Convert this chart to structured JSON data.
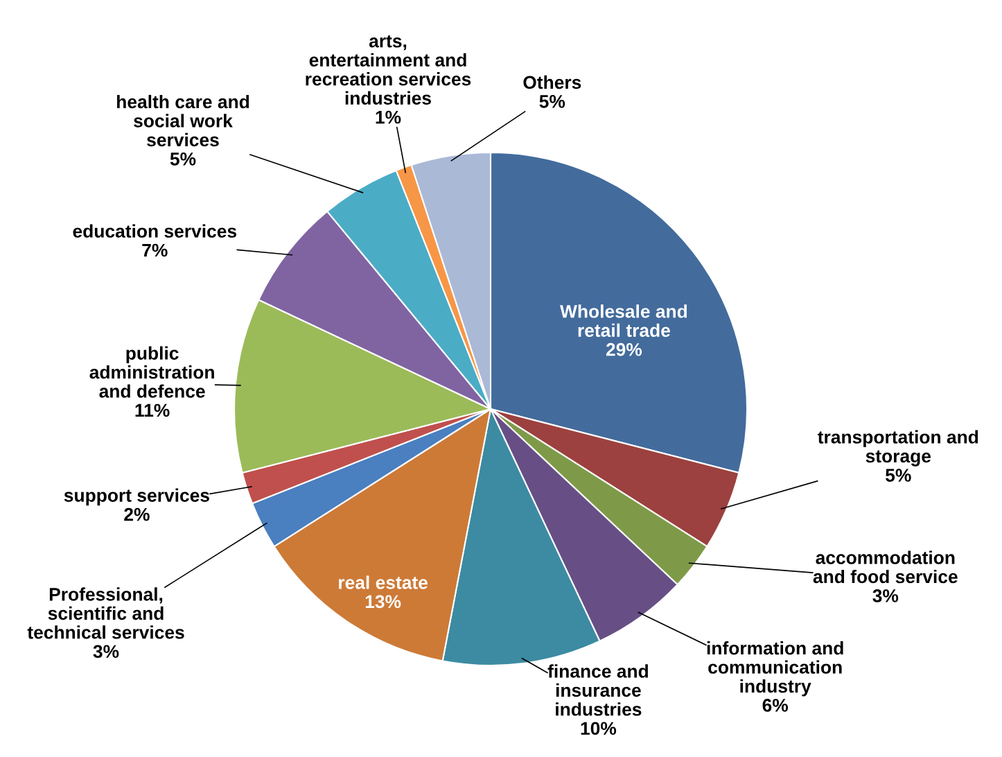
{
  "chart_data": {
    "type": "pie",
    "categories": [
      "Wholesale and\nretail trade",
      "transportation and\nstorage",
      "accommodation\nand food service",
      "information and\ncommunication\nindustry",
      "finance and\ninsurance\nindustries",
      "real estate",
      "Professional,\nscientific and\ntechnical services",
      "support services",
      "public\nadministration\nand defence",
      "education services",
      "health care and\nsocial work\nservices",
      "arts,\nentertainment and\nrecreation services\nindustries",
      "Others"
    ],
    "values": [
      29,
      5,
      3,
      6,
      10,
      13,
      3,
      2,
      11,
      7,
      5,
      1,
      5
    ],
    "value_labels": [
      "29%",
      "5%",
      "3%",
      "6%",
      "10%",
      "13%",
      "3%",
      "2%",
      "11%",
      "7%",
      "5%",
      "1%",
      "5%"
    ],
    "colors": [
      "#436b9c",
      "#9c413f",
      "#7e9a48",
      "#674f86",
      "#3c8ba2",
      "#cd7a37",
      "#4a7fc0",
      "#c0504d",
      "#9bbb59",
      "#8064a2",
      "#4bacc6",
      "#f79646",
      "#aab9d6"
    ]
  }
}
